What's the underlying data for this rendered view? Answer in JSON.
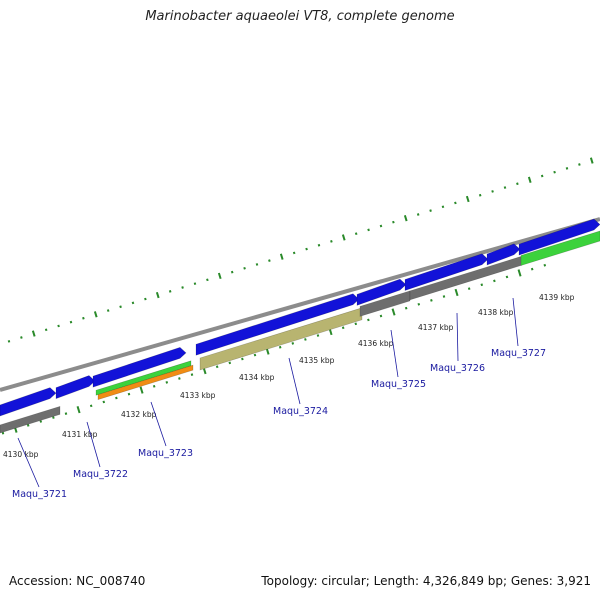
{
  "title": "Marinobacter aquaeolei VT8, complete genome",
  "footer": {
    "accession": "Accession: NC_008740",
    "topology": "Topology: circular; Length: 4,326,849 bp; Genes: 3,921"
  },
  "colors": {
    "cds": "#1212d8",
    "gene": "#6e6e6e",
    "backbone": "#8c8c8c",
    "trna": "#3cd23c",
    "rrna": "#f08c14",
    "pseudo": "#b8b470",
    "ticks": "#2a8a2a",
    "label": "#1a1aa0"
  },
  "kbp_ticks": [
    "4130 kbp",
    "4131 kbp",
    "4132 kbp",
    "4133 kbp",
    "4134 kbp",
    "4135 kbp",
    "4136 kbp",
    "4137 kbp",
    "4138 kbp",
    "4139 kbp"
  ],
  "gene_labels": [
    "Maqu_3721",
    "Maqu_3722",
    "Maqu_3723",
    "Maqu_3724",
    "Maqu_3725",
    "Maqu_3726",
    "Maqu_3727"
  ]
}
